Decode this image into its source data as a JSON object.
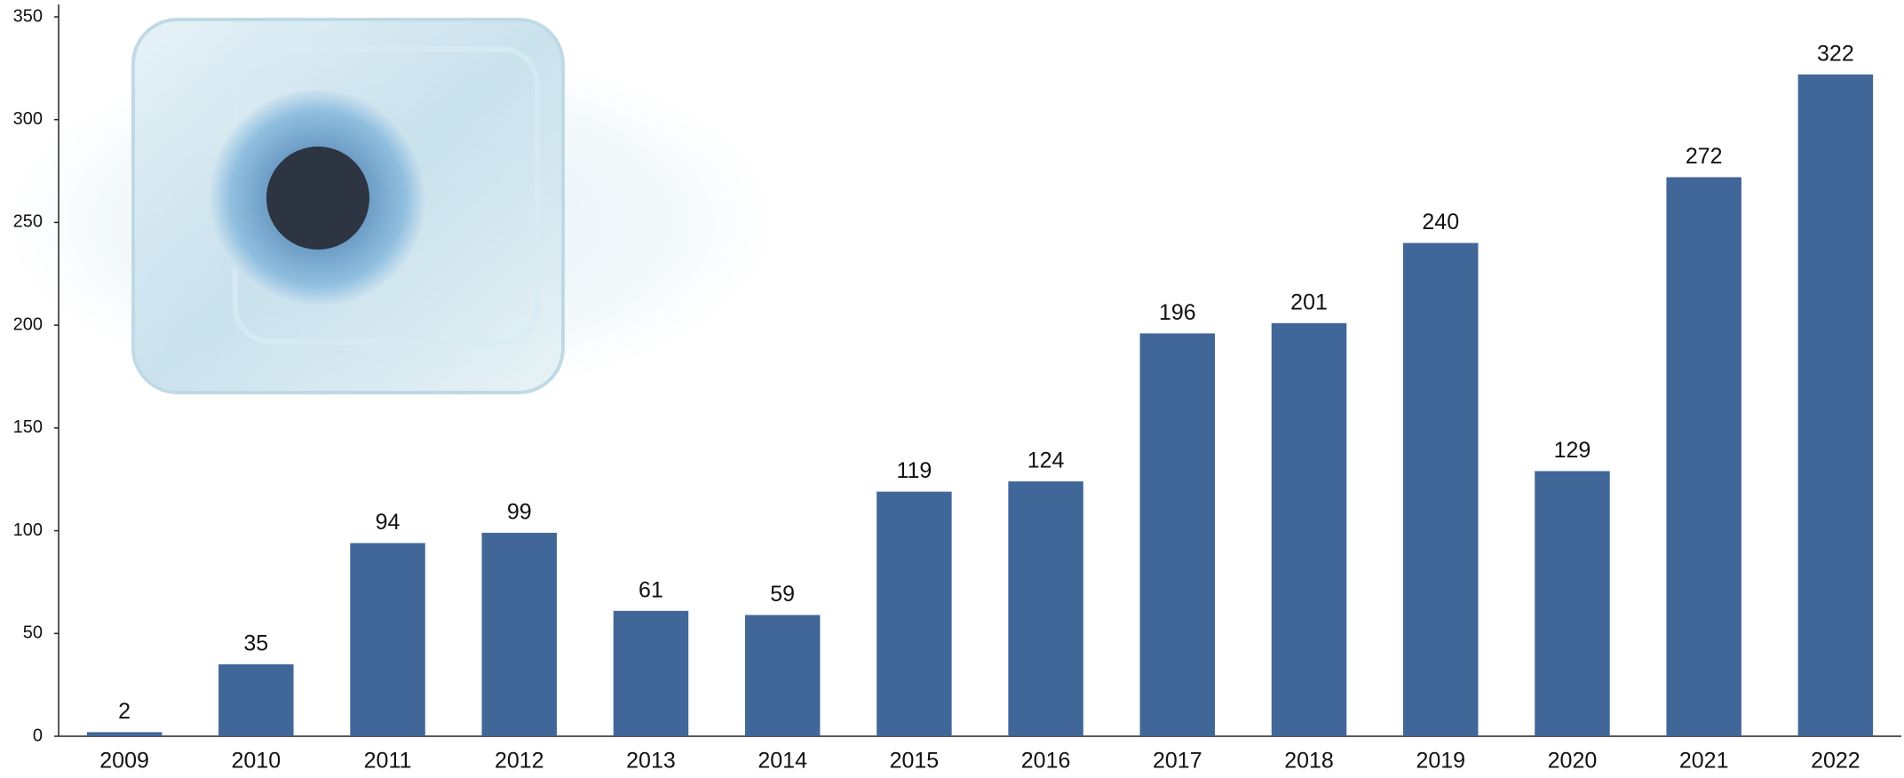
{
  "chart_data": {
    "type": "bar",
    "categories": [
      "2009",
      "2010",
      "2011",
      "2012",
      "2013",
      "2014",
      "2015",
      "2016",
      "2017",
      "2018",
      "2019",
      "2020",
      "2021",
      "2022"
    ],
    "values": [
      2,
      35,
      94,
      99,
      61,
      59,
      119,
      124,
      196,
      201,
      240,
      129,
      272,
      322
    ],
    "color": "#416799",
    "ylim": [
      0,
      350
    ],
    "yticks": [
      0,
      50,
      100,
      150,
      200,
      250,
      300,
      350
    ],
    "grid": false
  }
}
